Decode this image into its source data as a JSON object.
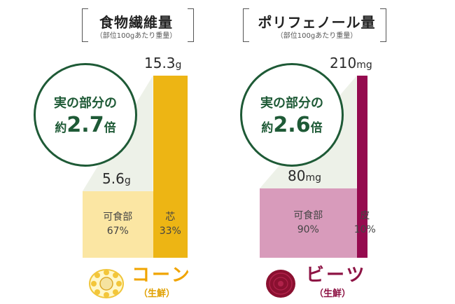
{
  "colors": {
    "corn_light": "#fbe6a3",
    "corn_dark": "#edb514",
    "beet_light": "#d89bbb",
    "beet_dark": "#950b4f",
    "badge_green": "#1e5a36",
    "wedge": "#edf1e8"
  },
  "chart_data": [
    {
      "type": "bar",
      "title": "食物繊維量",
      "subtitle": "（部位100gあたり重量）",
      "badge": {
        "line1": "実の部分の",
        "prefix": "約",
        "value": "2.7",
        "suffix": "倍"
      },
      "product": {
        "name": "コーン",
        "sub": "（生鮮）",
        "icon": "corn-icon"
      },
      "ylim": [
        0,
        15.3
      ],
      "series": [
        {
          "part": "可食部",
          "share": "67%",
          "share_fraction": 0.67,
          "value": 5.6,
          "value_text": "5.6",
          "unit": "g"
        },
        {
          "part": "芯",
          "share": "33%",
          "share_fraction": 0.33,
          "value": 15.3,
          "value_text": "15.3",
          "unit": "g"
        }
      ]
    },
    {
      "type": "bar",
      "title": "ポリフェノール量",
      "subtitle": "（部位100gあたり重量）",
      "badge": {
        "line1": "実の部分の",
        "prefix": "約",
        "value": "2.6",
        "suffix": "倍"
      },
      "product": {
        "name": "ビーツ",
        "sub": "（生鮮）",
        "icon": "beet-icon"
      },
      "ylim": [
        0,
        210
      ],
      "series": [
        {
          "part": "可食部",
          "share": "90%",
          "share_fraction": 0.9,
          "value": 80,
          "value_text": "80",
          "unit": "mg"
        },
        {
          "part": "皮",
          "share": "10%",
          "share_fraction": 0.1,
          "value": 210,
          "value_text": "210",
          "unit": "mg"
        }
      ]
    }
  ]
}
